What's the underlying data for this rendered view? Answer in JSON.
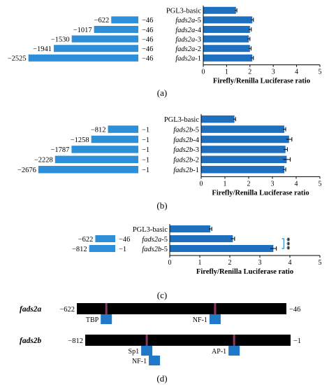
{
  "colors": {
    "frag": "#2E8FD9",
    "bar": "#1F6FBF",
    "tf_box": "#2078C8",
    "site": "#8B3A62",
    "promoter": "#000000"
  },
  "panels": {
    "a": "(a)",
    "b": "(b)",
    "c": "(c)",
    "d": "(d)"
  },
  "chart_data": [
    {
      "type": "bar",
      "orientation": "horizontal",
      "panel": "(a)",
      "categories": [
        "PGL3-basic",
        "fads2a-5",
        "fads2a-4",
        "fads2a-3",
        "fads2a-2",
        "fads2a-1"
      ],
      "category_prefix": [
        "",
        "fads2a",
        "fads2a",
        "fads2a",
        "fads2a",
        "fads2a"
      ],
      "category_suffix": [
        "",
        "-5",
        "-4",
        "-3",
        "-2",
        "-1"
      ],
      "values": [
        1.4,
        2.1,
        2.0,
        1.95,
        2.0,
        2.1
      ],
      "errors": [
        0.04,
        0.05,
        0.06,
        0.05,
        0.05,
        0.05
      ],
      "xlim": [
        0,
        5
      ],
      "xticks": [
        "0",
        "1",
        "2",
        "3",
        "4",
        "5"
      ],
      "xlabel": "Firefly/Renilla Luciferase ratio",
      "fragments": [
        {
          "start": "−622",
          "end": "−46",
          "length": 622
        },
        {
          "start": "−1017",
          "end": "−46",
          "length": 1017
        },
        {
          "start": "−1530",
          "end": "−46",
          "length": 1530
        },
        {
          "start": "−1941",
          "end": "−46",
          "length": 1941
        },
        {
          "start": "−2525",
          "end": "−46",
          "length": 2525
        }
      ]
    },
    {
      "type": "bar",
      "orientation": "horizontal",
      "panel": "(b)",
      "categories": [
        "PGL3-basic",
        "fads2b-5",
        "fads2b-4",
        "fads2b-3",
        "fads2b-2",
        "fads2b-1"
      ],
      "category_prefix": [
        "",
        "fads2b",
        "fads2b",
        "fads2b",
        "fads2b",
        "fads2b"
      ],
      "category_suffix": [
        "",
        "-5",
        "-4",
        "-3",
        "-2",
        "-1"
      ],
      "values": [
        1.4,
        3.5,
        3.7,
        3.55,
        3.6,
        3.5
      ],
      "errors": [
        0.05,
        0.06,
        0.12,
        0.08,
        0.15,
        0.06
      ],
      "xlim": [
        0,
        5
      ],
      "xticks": [
        "0",
        "1",
        "2",
        "3",
        "4",
        "5"
      ],
      "xlabel": "Firefly/Renilla Luciferase ratio",
      "fragments": [
        {
          "start": "−812",
          "end": "−1",
          "length": 812
        },
        {
          "start": "−1258",
          "end": "−1",
          "length": 1258
        },
        {
          "start": "−1787",
          "end": "−1",
          "length": 1787
        },
        {
          "start": "−2228",
          "end": "−1",
          "length": 2228
        },
        {
          "start": "−2676",
          "end": "−1",
          "length": 2676
        }
      ]
    },
    {
      "type": "bar",
      "orientation": "horizontal",
      "panel": "(c)",
      "categories": [
        "PGL3-basic",
        "fads2a-5",
        "fads2b-5"
      ],
      "category_prefix": [
        "",
        "fads2a",
        "fads2b"
      ],
      "category_suffix": [
        "",
        "-5",
        "-5"
      ],
      "values": [
        1.35,
        2.1,
        3.45
      ],
      "errors": [
        0.05,
        0.06,
        0.1
      ],
      "xlim": [
        0,
        5
      ],
      "xticks": [
        "0",
        "1",
        "2",
        "3",
        "4",
        "5"
      ],
      "xlabel": "Firefly/Renilla Luciferase ratio",
      "significance": "***",
      "fragments": [
        {
          "start": "−622",
          "end": "−46",
          "length": 622
        },
        {
          "start": "−812",
          "end": "−1",
          "length": 812
        }
      ]
    }
  ],
  "promoters": [
    {
      "name": "fads2a",
      "start": "−622",
      "end": "−46",
      "sites": [
        {
          "label": "TBP",
          "pos": -541,
          "side": "below"
        },
        {
          "label": "NF-1",
          "pos": -242,
          "side": "below"
        }
      ]
    },
    {
      "name": "fads2b",
      "start": "−812",
      "end": "−1",
      "sites": [
        {
          "label": "Sp1",
          "pos": -569,
          "side": "below"
        },
        {
          "label": "NF-1",
          "pos": -569,
          "side": "below2"
        },
        {
          "label": "AP-1",
          "pos": -224,
          "side": "below"
        }
      ]
    }
  ]
}
